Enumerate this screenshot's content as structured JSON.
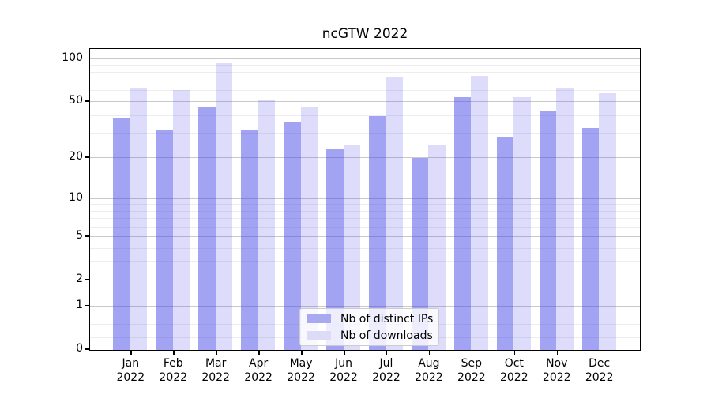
{
  "chart_data": {
    "type": "bar",
    "title": "ncGTW 2022",
    "categories": [
      "Jan",
      "Feb",
      "Mar",
      "Apr",
      "May",
      "Jun",
      "Jul",
      "Aug",
      "Sep",
      "Oct",
      "Nov",
      "Dec"
    ],
    "x_year": "2022",
    "series": [
      {
        "name": "Nb of distinct IPs",
        "values": [
          39,
          32,
          46,
          32,
          36,
          23,
          40,
          20,
          54,
          28,
          43,
          33
        ],
        "bar_color": "rgba(72,72,232,0.50)",
        "swatch_color": "#a9a9f2"
      },
      {
        "name": "Nb of downloads",
        "values": [
          62,
          61,
          93,
          52,
          46,
          25,
          75,
          25,
          76,
          54,
          62,
          58
        ],
        "bar_color": "rgba(72,72,232,0.19)",
        "swatch_color": "#dcdcf9"
      }
    ],
    "y_axis": {
      "scale": "log1p",
      "max": 116,
      "ticks": [
        100,
        50,
        20,
        10,
        5,
        2,
        1,
        0
      ],
      "minor_ticks": [
        0.2,
        0.5,
        3,
        4,
        6,
        7,
        8,
        9,
        30,
        40,
        60,
        70,
        80,
        90
      ]
    },
    "grid": true,
    "legend_position": "lower-center-inside",
    "colors": {
      "grid_major": "#c9c9c9",
      "grid_minor": "#ededed",
      "spine": "#000000",
      "background": "#ffffff"
    }
  }
}
